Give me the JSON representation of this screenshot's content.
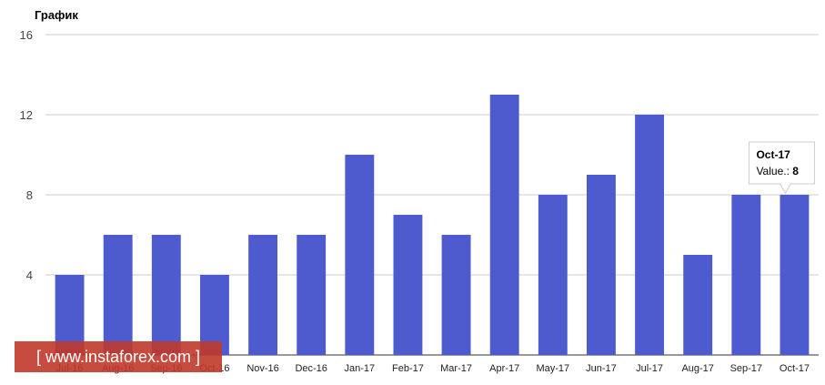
{
  "chart_data": {
    "type": "bar",
    "title": "График",
    "categories": [
      "Jul-16",
      "Aug-16",
      "Sep-16",
      "Oct-16",
      "Nov-16",
      "Dec-16",
      "Jan-17",
      "Feb-17",
      "Mar-17",
      "Apr-17",
      "May-17",
      "Jun-17",
      "Jul-17",
      "Aug-17",
      "Sep-17",
      "Oct-17"
    ],
    "values": [
      4,
      6,
      6,
      4,
      6,
      6,
      10,
      7,
      6,
      13,
      8,
      9,
      12,
      5,
      8,
      8
    ],
    "ylim": [
      0,
      16
    ],
    "yticks": [
      4,
      8,
      12,
      16
    ],
    "xlabel": "",
    "ylabel": "",
    "grid": true,
    "bar_color": "#4e5bce",
    "tooltip": {
      "index": 15,
      "header": "Oct-17",
      "label": "Value.:",
      "value": "8"
    }
  },
  "watermark": {
    "text": "[  www.instaforex.com  ]",
    "background": "#c0392b"
  }
}
